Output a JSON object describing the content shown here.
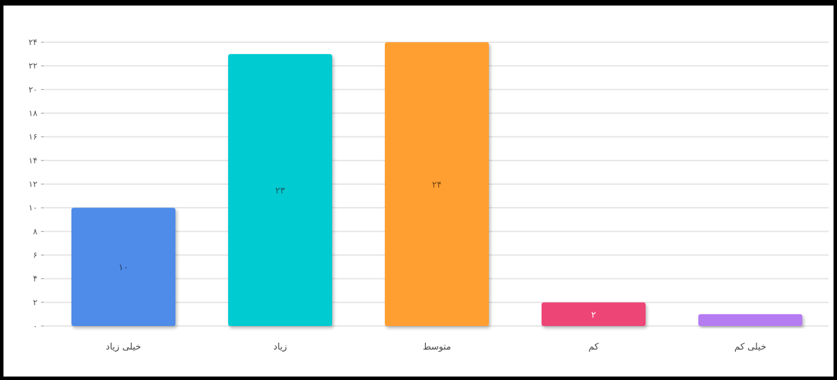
{
  "chart_data": {
    "type": "bar",
    "categories": [
      "خیلی زیاد",
      "زیاد",
      "متوسط",
      "کم",
      "خیلی کم"
    ],
    "values": [
      10,
      23,
      24,
      2,
      1
    ],
    "data_labels": [
      "۱۰",
      "۲۳",
      "۲۴",
      "۲",
      ""
    ],
    "colors": [
      "#4f8be8",
      "#06cbd1",
      "#ff9f30",
      "#ee4477",
      "#b57cf2"
    ],
    "data_label_colors": [
      "#2a3f66",
      "#1f5c66",
      "#7a4a10",
      "#ffffff",
      "#ffffff"
    ],
    "y_ticks": [
      0,
      2,
      4,
      6,
      8,
      10,
      12,
      14,
      16,
      18,
      20,
      22,
      24
    ],
    "y_tick_labels": [
      "۰",
      "۲",
      "۴",
      "۶",
      "۸",
      "۱۰",
      "۱۲",
      "۱۴",
      "۱۶",
      "۱۸",
      "۲۰",
      "۲۲",
      "۲۴"
    ],
    "ylim": [
      0,
      24
    ],
    "grid": true,
    "title": "",
    "xlabel": "",
    "ylabel": ""
  }
}
